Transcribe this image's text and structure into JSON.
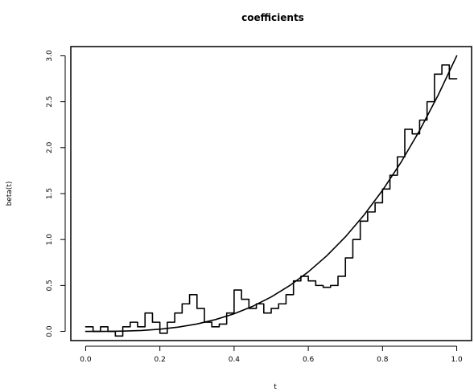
{
  "chart_data": {
    "type": "line",
    "title": "coefficients",
    "xlabel": "t",
    "ylabel": "beta(t)",
    "xlim": [
      -0.04,
      1.04
    ],
    "ylim": [
      -0.1,
      3.1
    ],
    "x_ticks": [
      "0.0",
      "0.2",
      "0.4",
      "0.6",
      "0.8",
      "1.0"
    ],
    "y_ticks": [
      "0.0",
      "0.5",
      "1.0",
      "1.5",
      "2.0",
      "2.5",
      "3.0"
    ],
    "grid": false,
    "legend": "none",
    "series": [
      {
        "style": "smooth",
        "x": [
          0.0,
          0.05,
          0.1,
          0.15,
          0.2,
          0.25,
          0.3,
          0.35,
          0.4,
          0.45,
          0.5,
          0.55,
          0.6,
          0.65,
          0.7,
          0.75,
          0.8,
          0.85,
          0.9,
          0.95,
          1.0
        ],
        "y": [
          0.0,
          0.0004,
          0.003,
          0.01,
          0.024,
          0.047,
          0.081,
          0.129,
          0.192,
          0.273,
          0.375,
          0.499,
          0.648,
          0.824,
          1.029,
          1.266,
          1.536,
          1.842,
          2.187,
          2.572,
          3.0
        ]
      },
      {
        "style": "step",
        "x": [
          0.01,
          0.03,
          0.05,
          0.07,
          0.09,
          0.11,
          0.13,
          0.15,
          0.17,
          0.19,
          0.21,
          0.23,
          0.25,
          0.27,
          0.29,
          0.31,
          0.33,
          0.35,
          0.37,
          0.39,
          0.41,
          0.43,
          0.45,
          0.47,
          0.49,
          0.51,
          0.53,
          0.55,
          0.57,
          0.59,
          0.61,
          0.63,
          0.65,
          0.67,
          0.69,
          0.71,
          0.73,
          0.75,
          0.77,
          0.79,
          0.81,
          0.83,
          0.85,
          0.87,
          0.89,
          0.91,
          0.93,
          0.95,
          0.97,
          0.99
        ],
        "y": [
          0.05,
          0.0,
          0.05,
          0.0,
          -0.05,
          0.05,
          0.1,
          0.05,
          0.2,
          0.1,
          -0.02,
          0.1,
          0.2,
          0.3,
          0.4,
          0.25,
          0.1,
          0.05,
          0.08,
          0.2,
          0.45,
          0.35,
          0.25,
          0.3,
          0.2,
          0.25,
          0.3,
          0.4,
          0.55,
          0.6,
          0.55,
          0.5,
          0.48,
          0.5,
          0.6,
          0.8,
          1.0,
          1.2,
          1.3,
          1.4,
          1.55,
          1.7,
          1.9,
          2.2,
          2.15,
          2.3,
          2.5,
          2.8,
          2.9,
          2.75
        ]
      }
    ]
  }
}
